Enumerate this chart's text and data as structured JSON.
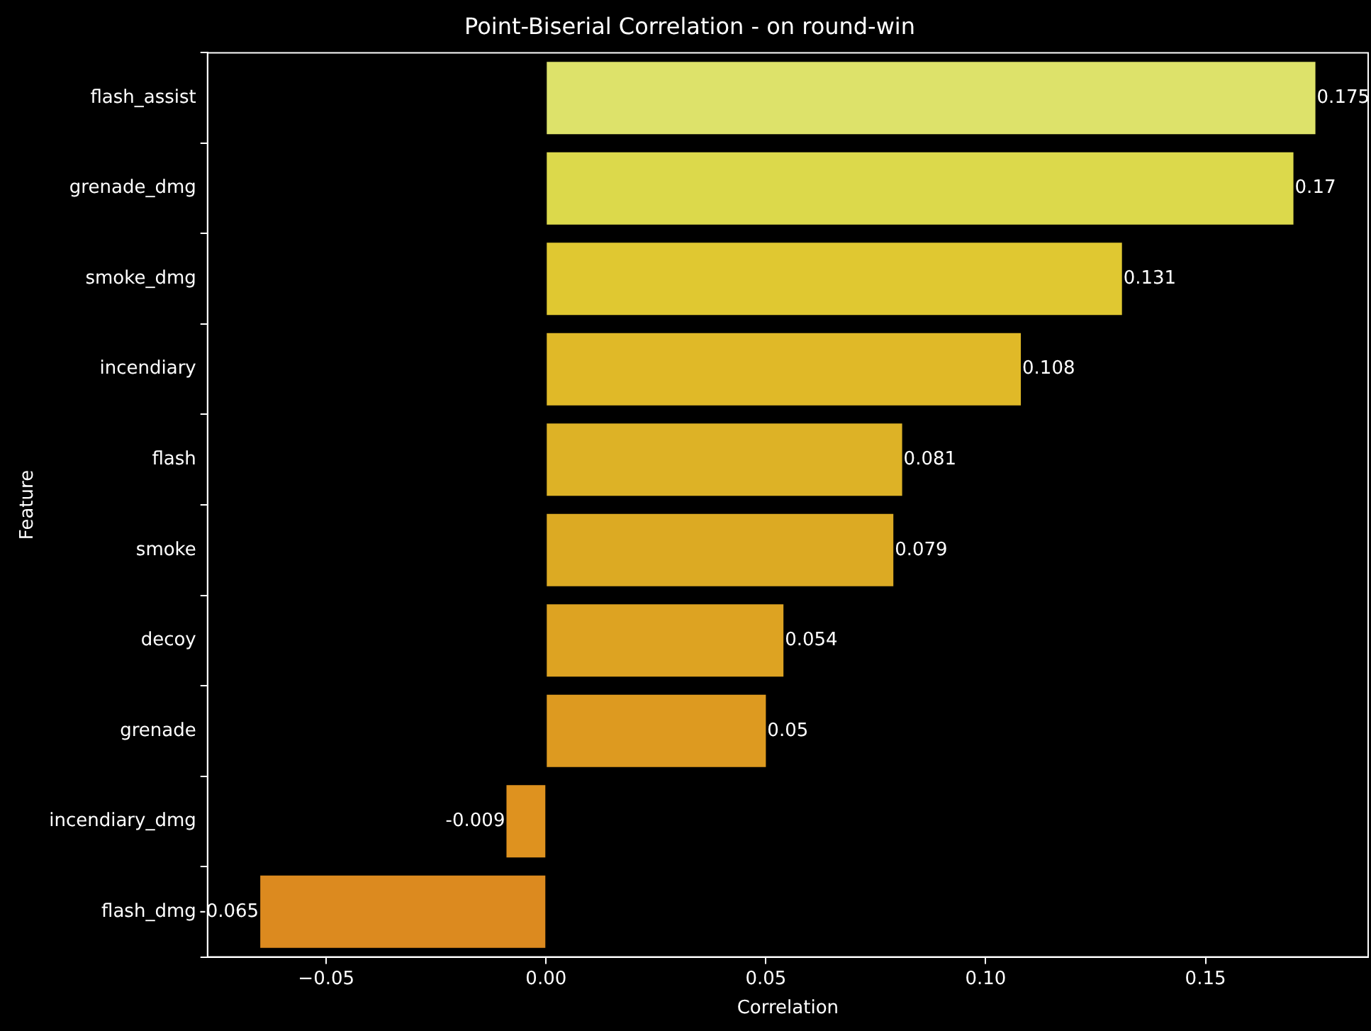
{
  "chart_data": {
    "type": "bar",
    "orientation": "horizontal",
    "title": "Point-Biserial Correlation - on round-win",
    "xlabel": "Correlation",
    "ylabel": "Feature",
    "categories": [
      "flash_assist",
      "grenade_dmg",
      "smoke_dmg",
      "incendiary",
      "flash",
      "smoke",
      "decoy",
      "grenade",
      "incendiary_dmg",
      "flash_dmg"
    ],
    "values": [
      0.175,
      0.17,
      0.131,
      0.108,
      0.081,
      0.079,
      0.054,
      0.05,
      -0.009,
      -0.065
    ],
    "colors": [
      "#dde26a",
      "#dcd94b",
      "#e0c831",
      "#e0b928",
      "#ddb226",
      "#dcaa23",
      "#dda322",
      "#dd9a20",
      "#de921f",
      "#dc8a1f"
    ],
    "xlim": [
      -0.077,
      0.187
    ],
    "xticks": [
      {
        "value": -0.05,
        "label": "−0.05"
      },
      {
        "value": 0,
        "label": "0.00"
      },
      {
        "value": 0.05,
        "label": "0.05"
      },
      {
        "value": 0.1,
        "label": "0.10"
      },
      {
        "value": 0.15,
        "label": "0.15"
      }
    ],
    "data_labels": true,
    "grid": false,
    "legend": false
  }
}
